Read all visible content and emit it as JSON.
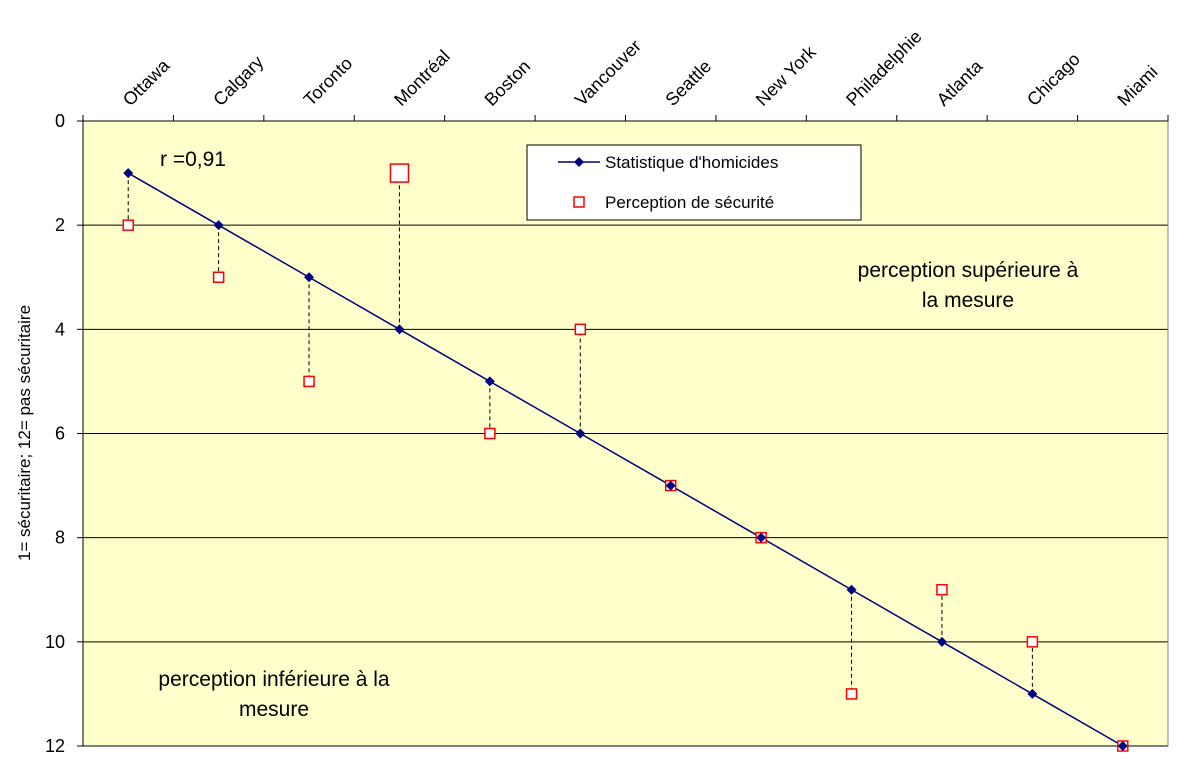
{
  "chart_data": {
    "type": "line",
    "categories": [
      "Ottawa",
      "Calgary",
      "Toronto",
      "Montréal",
      "Boston",
      "Vancouver",
      "Seattle",
      "New York",
      "Philadelphie",
      "Atlanta",
      "Chicago",
      "Miami"
    ],
    "series": [
      {
        "name": "Statistique d'homicides",
        "values": [
          1,
          2,
          3,
          4,
          5,
          6,
          7,
          8,
          9,
          10,
          11,
          12
        ],
        "color": "#000080",
        "marker": "diamond"
      },
      {
        "name": "Perception de sécurité",
        "values": [
          2,
          3,
          5,
          1,
          6,
          4,
          7,
          8,
          11,
          9,
          10,
          12
        ],
        "color": "#ff0000",
        "marker": "square-open"
      }
    ],
    "highlighted_point": {
      "series": "Perception de sécurité",
      "category": "Montréal"
    },
    "ylabel": "1=  sécuritaire; 12= pas sécuritaire",
    "xlabel": "",
    "ylim": [
      0,
      12
    ],
    "y_reversed": true,
    "y_ticks": [
      0,
      2,
      4,
      6,
      8,
      10,
      12
    ],
    "x_axis_position": "top",
    "grid": {
      "horizontal": true,
      "vertical": false
    },
    "legend_position": "top-center",
    "plot_background": "#ffffcc",
    "annotations": {
      "correlation": "r =0,91",
      "above_label_line1": "perception supérieure à",
      "above_label_line2": "la mesure",
      "below_label_line1": "perception inférieure à la",
      "below_label_line2": "mesure"
    }
  }
}
